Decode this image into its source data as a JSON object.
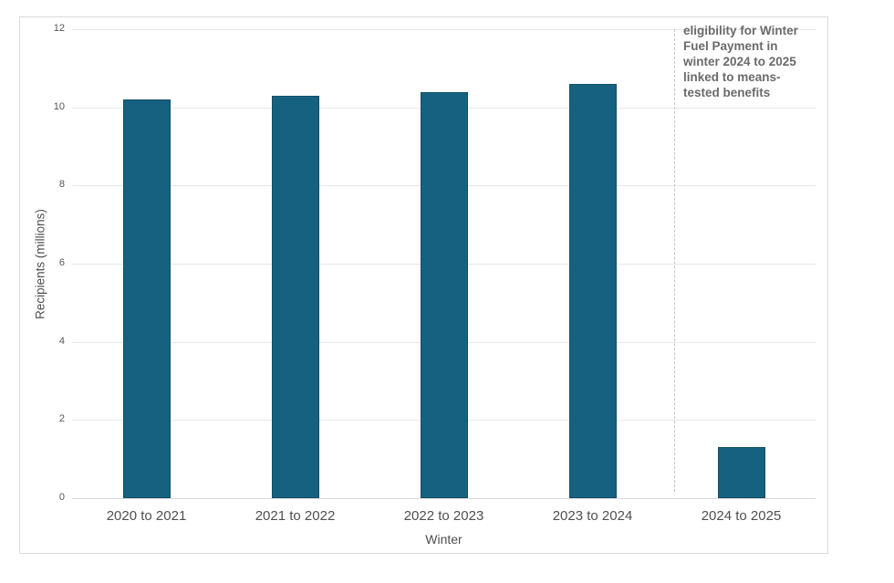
{
  "chart_data": {
    "type": "bar",
    "categories": [
      "2020 to 2021",
      "2021 to 2022",
      "2022 to 2023",
      "2023 to 2024",
      "2024 to 2025"
    ],
    "values": [
      10.2,
      10.3,
      10.4,
      10.6,
      1.3
    ],
    "title": "",
    "xlabel": "Winter",
    "ylabel": "Recipients (millions)",
    "ylim": [
      0,
      12
    ],
    "yticks": [
      0,
      2,
      4,
      6,
      8,
      10,
      12
    ],
    "grid": true,
    "legend": "none",
    "bar_color": "#166180",
    "bar_border_color": "#124f68",
    "annotation": {
      "lines": [
        "eligibility for Winter",
        "Fuel Payment in",
        "winter 2024 to 2025",
        "linked to means-",
        "tested benefits"
      ],
      "text_color": "#6a6a6a",
      "divider_style": "dashed",
      "divider_x_fraction": 0.8104
    }
  }
}
